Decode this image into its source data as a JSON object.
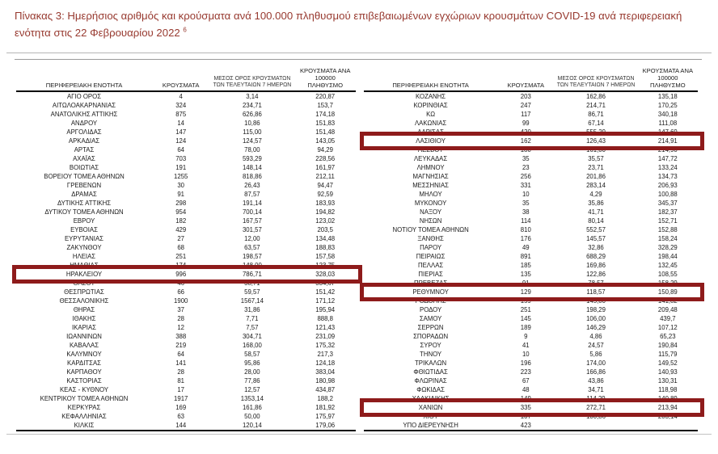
{
  "title": {
    "text": "Πίνακας 3:  Ημερήσιος αριθμός και κρούσματα ανά 100.000 πληθυσμού επιβεβαιωμένων εγχώριων κρουσμάτων COVID-19 ανά περιφερειακή ενότητα στις 22 Φεβρουαρίου 2022 ",
    "footnote_marker": "6"
  },
  "table": {
    "highlight_color": "#8e1b1b",
    "headers": {
      "region": "ΠΕΡΙΦΕΡΕΙΑΚΗ ΕΝΟΤΗΤΑ",
      "cases": "ΚΡΟΥΣΜΑΤΑ",
      "avg7_line1": "ΜΕΣΟΣ ΟΡΟΣ ΚΡΟΥΣΜΑΤΩΝ",
      "avg7_line2": "ΤΩΝ ΤΕΛΕΥΤΑΙΩΝ 7 ΗΜΕΡΩΝ",
      "per100k_line1": "ΚΡΟΥΣΜΑΤΑ ΑΝΑ 100000",
      "per100k_line2": "ΠΛΗΘΥΣΜΟ"
    },
    "left_rows": [
      {
        "region": "ΑΓΙΟ ΟΡΟΣ",
        "cases": "4",
        "avg7": "3,14",
        "per100k": "220,87"
      },
      {
        "region": "ΑΙΤΩΛΟΑΚΑΡΝΑΝΙΑΣ",
        "cases": "324",
        "avg7": "234,71",
        "per100k": "153,7"
      },
      {
        "region": "ΑΝΑΤΟΛΙΚΗΣ ΑΤΤΙΚΗΣ",
        "cases": "875",
        "avg7": "626,86",
        "per100k": "174,18"
      },
      {
        "region": "ΑΝΔΡΟΥ",
        "cases": "14",
        "avg7": "10,86",
        "per100k": "151,83"
      },
      {
        "region": "ΑΡΓΟΛΙΔΑΣ",
        "cases": "147",
        "avg7": "115,00",
        "per100k": "151,48"
      },
      {
        "region": "ΑΡΚΑΔΙΑΣ",
        "cases": "124",
        "avg7": "124,57",
        "per100k": "143,05"
      },
      {
        "region": "ΑΡΤΑΣ",
        "cases": "64",
        "avg7": "78,00",
        "per100k": "94,29"
      },
      {
        "region": "ΑΧΑΪΑΣ",
        "cases": "703",
        "avg7": "593,29",
        "per100k": "228,56"
      },
      {
        "region": "ΒΟΙΩΤΙΑΣ",
        "cases": "191",
        "avg7": "148,14",
        "per100k": "161,97"
      },
      {
        "region": "ΒΟΡΕΙΟΥ ΤΟΜΕΑ ΑΘΗΝΩΝ",
        "cases": "1255",
        "avg7": "818,86",
        "per100k": "212,11"
      },
      {
        "region": "ΓΡΕΒΕΝΩΝ",
        "cases": "30",
        "avg7": "26,43",
        "per100k": "94,47"
      },
      {
        "region": "ΔΡΑΜΑΣ",
        "cases": "91",
        "avg7": "87,57",
        "per100k": "92,59"
      },
      {
        "region": "ΔΥΤΙΚΗΣ ΑΤΤΙΚΗΣ",
        "cases": "298",
        "avg7": "191,14",
        "per100k": "183,93"
      },
      {
        "region": "ΔΥΤΙΚΟΥ ΤΟΜΕΑ ΑΘΗΝΩΝ",
        "cases": "954",
        "avg7": "700,14",
        "per100k": "194,82"
      },
      {
        "region": "ΕΒΡΟΥ",
        "cases": "182",
        "avg7": "167,57",
        "per100k": "123,02"
      },
      {
        "region": "ΕΥΒΟΙΑΣ",
        "cases": "429",
        "avg7": "301,57",
        "per100k": "203,5"
      },
      {
        "region": "ΕΥΡΥΤΑΝΙΑΣ",
        "cases": "27",
        "avg7": "12,00",
        "per100k": "134,48"
      },
      {
        "region": "ΖΑΚΥΝΘΟΥ",
        "cases": "68",
        "avg7": "63,57",
        "per100k": "188,83"
      },
      {
        "region": "ΗΛΕΙΑΣ",
        "cases": "251",
        "avg7": "198,57",
        "per100k": "157,58"
      },
      {
        "region": "ΗΜΑΘΙΑΣ",
        "cases": "174",
        "avg7": "148,00",
        "per100k": "123,75"
      },
      {
        "region": "ΗΡΑΚΛΕΙΟΥ",
        "cases": "996",
        "avg7": "786,71",
        "per100k": "328,03",
        "highlight": true
      },
      {
        "region": "ΘΑΣΟΥ",
        "cases": "46",
        "avg7": "38,71",
        "per100k": "334,67"
      },
      {
        "region": "ΘΕΣΠΡΩΤΙΑΣ",
        "cases": "66",
        "avg7": "59,57",
        "per100k": "151,42"
      },
      {
        "region": "ΘΕΣΣΑΛΟΝΙΚΗΣ",
        "cases": "1900",
        "avg7": "1567,14",
        "per100k": "171,12"
      },
      {
        "region": "ΘΗΡΑΣ",
        "cases": "37",
        "avg7": "31,86",
        "per100k": "195,94"
      },
      {
        "region": "ΙΘΑΚΗΣ",
        "cases": "28",
        "avg7": "7,71",
        "per100k": "888,8"
      },
      {
        "region": "ΙΚΑΡΙΑΣ",
        "cases": "12",
        "avg7": "7,57",
        "per100k": "121,43"
      },
      {
        "region": "ΙΩΑΝΝΙΝΩΝ",
        "cases": "388",
        "avg7": "304,71",
        "per100k": "231,09"
      },
      {
        "region": "ΚΑΒΑΛΑΣ",
        "cases": "219",
        "avg7": "168,00",
        "per100k": "175,32"
      },
      {
        "region": "ΚΑΛΥΜΝΟΥ",
        "cases": "64",
        "avg7": "58,57",
        "per100k": "217,3"
      },
      {
        "region": "ΚΑΡΔΙΤΣΑΣ",
        "cases": "141",
        "avg7": "95,86",
        "per100k": "124,18"
      },
      {
        "region": "ΚΑΡΠΑΘΟΥ",
        "cases": "28",
        "avg7": "28,00",
        "per100k": "383,04"
      },
      {
        "region": "ΚΑΣΤΟΡΙΑΣ",
        "cases": "81",
        "avg7": "77,86",
        "per100k": "180,98"
      },
      {
        "region": "ΚΕΑΣ - ΚΥΘΝΟΥ",
        "cases": "17",
        "avg7": "12,57",
        "per100k": "434,87"
      },
      {
        "region": "ΚΕΝΤΡΙΚΟΥ ΤΟΜΕΑ ΑΘΗΝΩΝ",
        "cases": "1917",
        "avg7": "1353,14",
        "per100k": "188,2"
      },
      {
        "region": "ΚΕΡΚΥΡΑΣ",
        "cases": "169",
        "avg7": "161,86",
        "per100k": "181,92"
      },
      {
        "region": "ΚΕΦΑΛΛΗΝΙΑΣ",
        "cases": "63",
        "avg7": "50,00",
        "per100k": "175,97"
      },
      {
        "region": "ΚΙΛΚΙΣ",
        "cases": "144",
        "avg7": "120,14",
        "per100k": "179,06"
      }
    ],
    "right_rows": [
      {
        "region": "ΚΟΖΑΝΗΣ",
        "cases": "203",
        "avg7": "162,86",
        "per100k": "135,18"
      },
      {
        "region": "ΚΟΡΙΝΘΙΑΣ",
        "cases": "247",
        "avg7": "214,71",
        "per100k": "170,25"
      },
      {
        "region": "ΚΩ",
        "cases": "117",
        "avg7": "86,71",
        "per100k": "340,18"
      },
      {
        "region": "ΛΑΚΩΝΙΑΣ",
        "cases": "99",
        "avg7": "67,14",
        "per100k": "111,08"
      },
      {
        "region": "ΛΑΡΙΣΑΣ",
        "cases": "420",
        "avg7": "555,29",
        "per100k": "147,69"
      },
      {
        "region": "ΛΑΣΙΘΙΟΥ",
        "cases": "162",
        "avg7": "126,43",
        "per100k": "214,91",
        "highlight": true
      },
      {
        "region": "ΛΕΣΒΟΥ",
        "cases": "180",
        "avg7": "161,00",
        "per100k": "214,90"
      },
      {
        "region": "ΛΕΥΚΑΔΑΣ",
        "cases": "35",
        "avg7": "35,57",
        "per100k": "147,72"
      },
      {
        "region": "ΛΗΜΝΟΥ",
        "cases": "23",
        "avg7": "23,71",
        "per100k": "133,24"
      },
      {
        "region": "ΜΑΓΝΗΣΙΑΣ",
        "cases": "256",
        "avg7": "201,86",
        "per100k": "134,73"
      },
      {
        "region": "ΜΕΣΣΗΝΙΑΣ",
        "cases": "331",
        "avg7": "283,14",
        "per100k": "206,93"
      },
      {
        "region": "ΜΗΛΟΥ",
        "cases": "10",
        "avg7": "4,29",
        "per100k": "100,88"
      },
      {
        "region": "ΜΥΚΟΝΟΥ",
        "cases": "35",
        "avg7": "35,86",
        "per100k": "345,37"
      },
      {
        "region": "ΝΑΞΟΥ",
        "cases": "38",
        "avg7": "41,71",
        "per100k": "182,37"
      },
      {
        "region": "ΝΗΣΩΝ",
        "cases": "114",
        "avg7": "80,14",
        "per100k": "152,71"
      },
      {
        "region": "ΝΟΤΙΟΥ ΤΟΜΕΑ ΑΘΗΝΩΝ",
        "cases": "810",
        "avg7": "552,57",
        "per100k": "152,88"
      },
      {
        "region": "ΞΑΝΘΗΣ",
        "cases": "176",
        "avg7": "145,57",
        "per100k": "158,24"
      },
      {
        "region": "ΠΑΡΟΥ",
        "cases": "49",
        "avg7": "32,86",
        "per100k": "328,29"
      },
      {
        "region": "ΠΕΙΡΑΙΩΣ",
        "cases": "891",
        "avg7": "688,29",
        "per100k": "198,44"
      },
      {
        "region": "ΠΕΛΛΑΣ",
        "cases": "185",
        "avg7": "169,86",
        "per100k": "132,45"
      },
      {
        "region": "ΠΙΕΡΙΑΣ",
        "cases": "135",
        "avg7": "122,86",
        "per100k": "108,55"
      },
      {
        "region": "ΠΡΕΒΕΖΑΣ",
        "cases": "91",
        "avg7": "78,57",
        "per100k": "158,29"
      },
      {
        "region": "ΡΕΘΥΜΝΟΥ",
        "cases": "129",
        "avg7": "118,57",
        "per100k": "150,89",
        "highlight": true
      },
      {
        "region": "ΡΟΔΟΠΗΣ",
        "cases": "159",
        "avg7": "145,00",
        "per100k": "141,82"
      },
      {
        "region": "ΡΟΔΟΥ",
        "cases": "251",
        "avg7": "198,29",
        "per100k": "209,48"
      },
      {
        "region": "ΣΑΜΟΥ",
        "cases": "145",
        "avg7": "106,00",
        "per100k": "439,7"
      },
      {
        "region": "ΣΕΡΡΩΝ",
        "cases": "189",
        "avg7": "146,29",
        "per100k": "107,12"
      },
      {
        "region": "ΣΠΟΡΑΔΩΝ",
        "cases": "9",
        "avg7": "4,86",
        "per100k": "65,23"
      },
      {
        "region": "ΣΥΡΟΥ",
        "cases": "41",
        "avg7": "24,57",
        "per100k": "190,84"
      },
      {
        "region": "ΤΗΝΟΥ",
        "cases": "10",
        "avg7": "5,86",
        "per100k": "115,79"
      },
      {
        "region": "ΤΡΙΚΑΛΩΝ",
        "cases": "196",
        "avg7": "174,00",
        "per100k": "149,52"
      },
      {
        "region": "ΦΘΙΩΤΙΔΑΣ",
        "cases": "223",
        "avg7": "166,86",
        "per100k": "140,93"
      },
      {
        "region": "ΦΛΩΡΙΝΑΣ",
        "cases": "67",
        "avg7": "43,86",
        "per100k": "130,31"
      },
      {
        "region": "ΦΩΚΙΔΑΣ",
        "cases": "48",
        "avg7": "34,71",
        "per100k": "118,98"
      },
      {
        "region": "ΧΑΛΚΙΔΙΚΗΣ",
        "cases": "149",
        "avg7": "114,29",
        "per100k": "140,89"
      },
      {
        "region": "ΧΑΝΙΩΝ",
        "cases": "335",
        "avg7": "272,71",
        "per100k": "213,94",
        "highlight": true
      },
      {
        "region": "ΧΙΟΥ",
        "cases": "107",
        "avg7": "100,86",
        "per100k": "203,14"
      },
      {
        "region": "ΥΠΟ ΔΙΕΡΕΥΝΗΣΗ",
        "cases": "423",
        "avg7": "",
        "per100k": ""
      }
    ]
  }
}
